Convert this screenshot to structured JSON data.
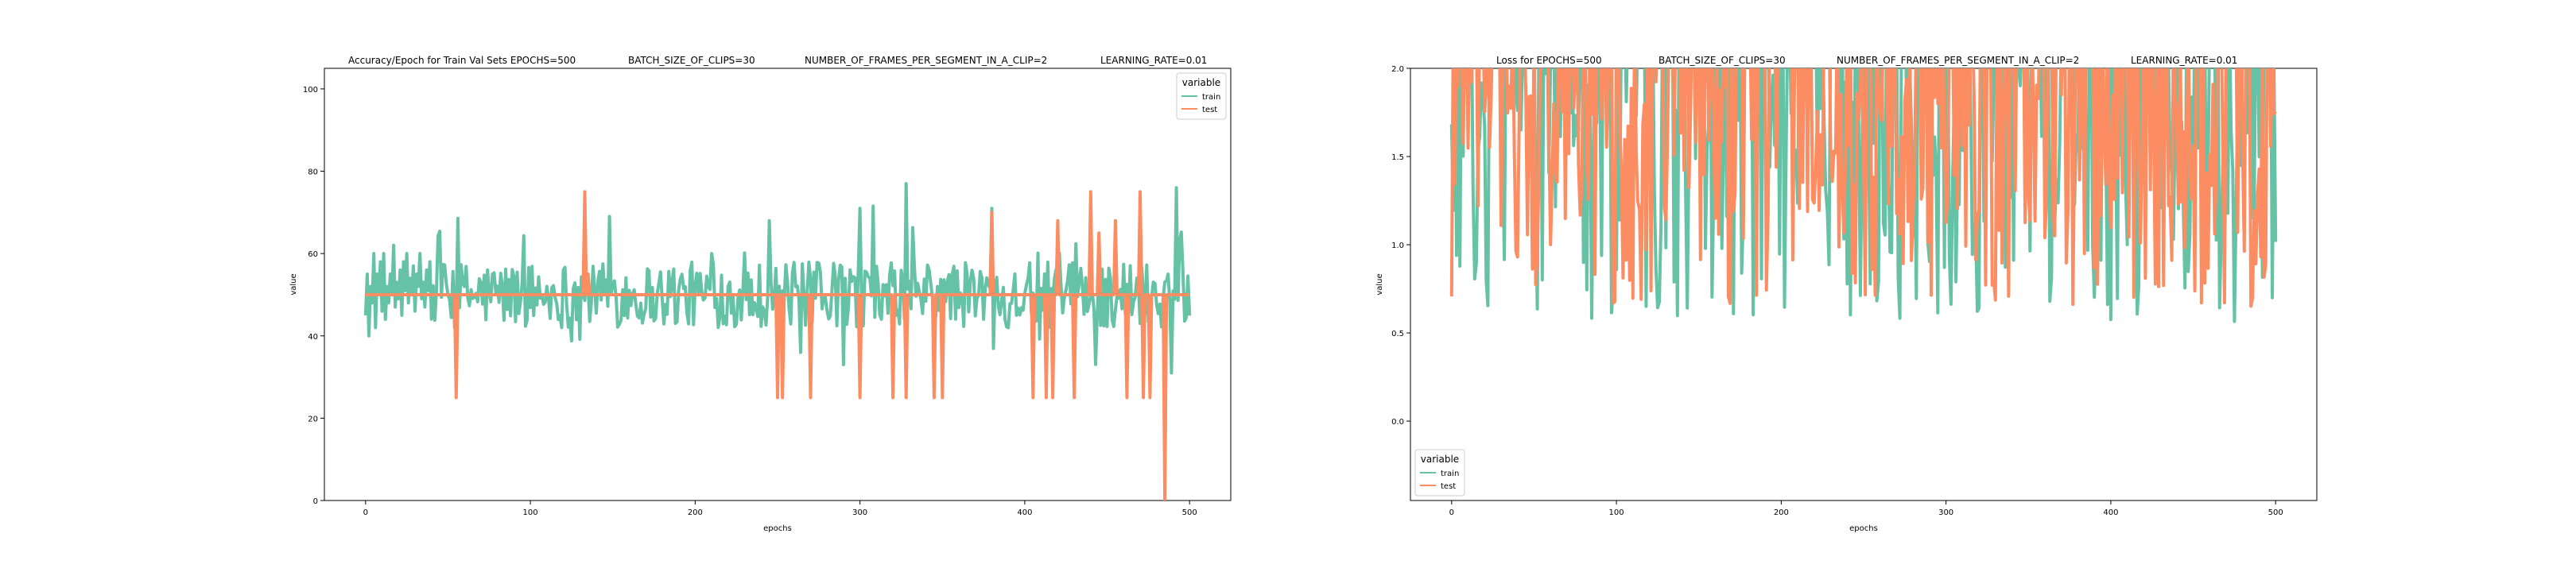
{
  "chart_data": [
    {
      "type": "line",
      "title_parts": [
        "Accuracy/Epoch for Train Val Sets EPOCHS=500",
        "BATCH_SIZE_OF_CLIPS=30",
        "NUMBER_OF_FRAMES_PER_SEGMENT_IN_A_CLIP=2",
        "LEARNING_RATE=0.01"
      ],
      "xlabel": "epochs",
      "ylabel": "value",
      "xlim": [
        -25,
        525
      ],
      "ylim": [
        0,
        105
      ],
      "xticks": [
        0,
        100,
        200,
        300,
        400,
        500
      ],
      "yticks": [
        0,
        20,
        40,
        60,
        80,
        100
      ],
      "grid": false,
      "legend": {
        "title": "variable",
        "position": "top-right",
        "entries": [
          "train",
          "test"
        ]
      },
      "series": [
        {
          "name": "train",
          "color": "#66c2a5",
          "x_start": 0,
          "x_end": 500,
          "values": [
            45,
            55,
            40,
            52,
            48,
            60,
            42,
            55,
            50,
            58,
            46,
            60,
            44,
            52,
            48,
            55,
            50,
            62,
            47,
            53,
            49,
            56,
            45,
            58,
            51,
            60,
            48,
            54,
            50,
            57,
            46,
            55,
            52,
            60,
            49,
            53,
            47,
            56,
            51,
            58
          ],
          "y_min": 31,
          "y_max": 77
        },
        {
          "name": "test",
          "color": "#fc8d62",
          "baseline": 50,
          "x_start": 0,
          "x_end": 500,
          "spikes": [
            [
              55,
              25
            ],
            [
              133,
              75
            ],
            [
              135,
              55
            ],
            [
              250,
              25
            ],
            [
              253,
              25
            ],
            [
              270,
              25
            ],
            [
              300,
              25
            ],
            [
              320,
              25
            ],
            [
              328,
              25
            ],
            [
              345,
              25
            ],
            [
              350,
              25
            ],
            [
              380,
              25
            ],
            [
              405,
              25
            ],
            [
              413,
              25
            ],
            [
              417,
              25
            ],
            [
              430,
              25
            ],
            [
              440,
              25
            ],
            [
              455,
              25
            ],
            [
              462,
              25
            ],
            [
              472,
              25
            ],
            [
              476,
              25
            ],
            [
              485,
              0
            ],
            [
              440,
              75
            ],
            [
              455,
              68
            ],
            [
              470,
              75
            ],
            [
              380,
              70
            ],
            [
              420,
              68
            ],
            [
              445,
              65
            ]
          ]
        }
      ]
    },
    {
      "type": "line",
      "title_parts": [
        "Loss for  EPOCHS=500",
        "BATCH_SIZE_OF_CLIPS=30",
        "NUMBER_OF_FRAMES_PER_SEGMENT_IN_A_CLIP=2",
        "LEARNING_RATE=0.01"
      ],
      "xlabel": "epochs",
      "ylabel": "value",
      "xlim": [
        -25,
        525
      ],
      "ylim": [
        -0.45,
        2.0
      ],
      "xticks": [
        0,
        100,
        200,
        300,
        400,
        500
      ],
      "yticks": [
        0.0,
        0.5,
        1.0,
        1.5,
        2.0
      ],
      "ytick_labels": [
        "0.0",
        "0.5",
        "1.0",
        "1.5",
        "2.0"
      ],
      "grid": false,
      "legend": {
        "title": "variable",
        "position": "bottom-left",
        "entries": [
          "train",
          "test"
        ]
      },
      "series": [
        {
          "name": "train",
          "color": "#66c2a5",
          "x_start": 0,
          "x_end": 500,
          "y_min": 0.55,
          "y_max": 2.0
        },
        {
          "name": "test",
          "color": "#fc8d62",
          "x_start": 0,
          "x_end": 500,
          "y_min": 0.65,
          "y_max": 2.0
        }
      ]
    }
  ]
}
